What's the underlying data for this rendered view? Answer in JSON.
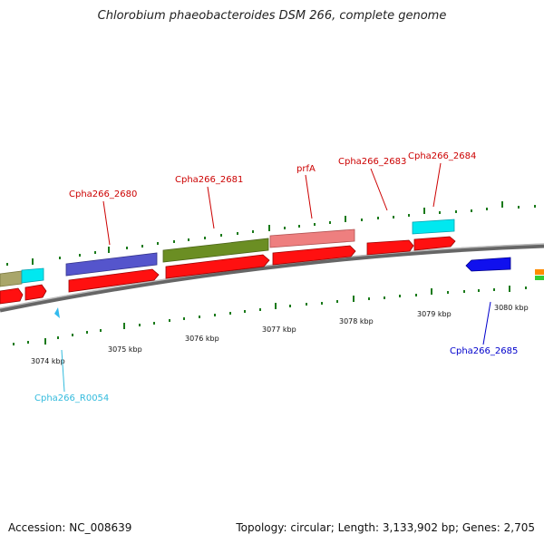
{
  "title": "Chlorobium phaeobacteroides DSM 266, complete genome",
  "footer": {
    "accession": "Accession: NC_008639",
    "summary": "Topology: circular; Length: 3,133,902 bp; Genes: 2,705"
  },
  "colors": {
    "cds": "#ff0000",
    "backbone": "#888888",
    "tick": "#1a7a1a",
    "label_red": "#cc0000",
    "label_blue": "#0000cc",
    "label_cyan": "#33bbdd"
  },
  "ruler": {
    "unit": "kbp",
    "labels": [
      {
        "text": "3074 kbp"
      },
      {
        "text": "3075 kbp"
      },
      {
        "text": "3076 kbp"
      },
      {
        "text": "3077 kbp"
      },
      {
        "text": "3078 kbp"
      },
      {
        "text": "3079 kbp"
      },
      {
        "text": "3080 kbp"
      }
    ]
  },
  "gene_labels": [
    {
      "text": "Cpha266_2680",
      "color": "#cc0000"
    },
    {
      "text": "Cpha266_2681",
      "color": "#cc0000"
    },
    {
      "text": "prfA",
      "color": "#cc0000"
    },
    {
      "text": "Cpha266_2683",
      "color": "#cc0000"
    },
    {
      "text": "Cpha266_2684",
      "color": "#cc0000"
    },
    {
      "text": "Cpha266_2685",
      "color": "#0000cc"
    },
    {
      "text": "Cpha266_R0054",
      "color": "#33bbdd"
    }
  ]
}
